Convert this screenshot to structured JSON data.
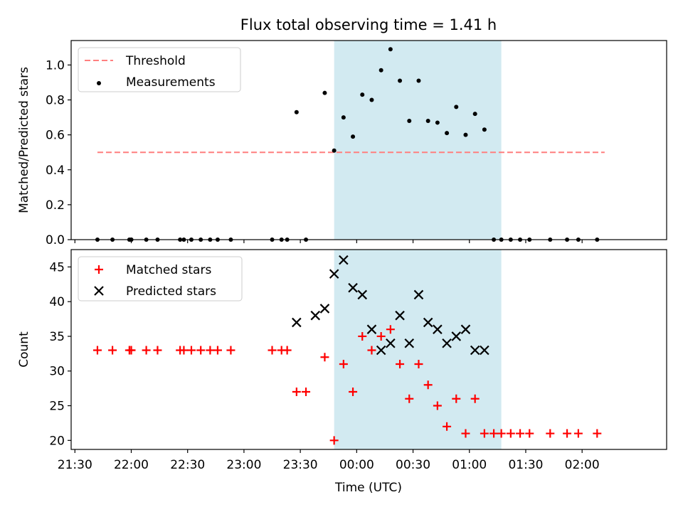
{
  "chart_data": {
    "title": "Flux total observing time = 1.41 h",
    "xlabel": "Time (UTC)",
    "x_unit": "time of day (HH:MM), continuing past midnight",
    "xlim": [
      "21:28",
      "02:45"
    ],
    "x_ticks": [
      "21:30",
      "22:00",
      "22:30",
      "23:00",
      "23:30",
      "00:00",
      "00:30",
      "01:00",
      "01:30",
      "02:00"
    ],
    "highlight_band": {
      "start": "23:48",
      "end": "01:17",
      "color": "#add8e6"
    },
    "panels": [
      {
        "type": "scatter",
        "ylabel": "Matched/Predicted stars",
        "ylim": [
          0,
          1.14
        ],
        "y_ticks": [
          "0.0",
          "0.2",
          "0.4",
          "0.6",
          "0.8",
          "1.0"
        ],
        "y_tick_values": [
          0,
          0.2,
          0.4,
          0.6,
          0.8,
          1.0
        ],
        "legend_position": "top-left",
        "series": [
          {
            "name": "Threshold",
            "type": "line",
            "style": "dashed",
            "color": "#ff7f7f",
            "x": [
              "21:42",
              "02:12"
            ],
            "y": [
              0.5,
              0.5
            ]
          },
          {
            "name": "Measurements",
            "type": "scatter",
            "marker": "dot",
            "color": "#000000",
            "x": [
              "21:42",
              "21:50",
              "21:59",
              "22:00",
              "22:00",
              "22:08",
              "22:14",
              "22:26",
              "22:28",
              "22:32",
              "22:37",
              "22:42",
              "22:46",
              "22:53",
              "23:15",
              "23:20",
              "23:23",
              "23:28",
              "23:33",
              "23:43",
              "23:48",
              "23:53",
              "23:58",
              "24:03",
              "24:08",
              "24:13",
              "24:18",
              "24:23",
              "24:28",
              "24:33",
              "24:38",
              "24:43",
              "24:48",
              "24:53",
              "24:58",
              "25:03",
              "25:08",
              "25:13",
              "25:17",
              "25:22",
              "25:27",
              "25:32",
              "25:43",
              "25:52",
              "25:58",
              "26:08"
            ],
            "y": [
              0,
              0,
              0,
              0,
              0,
              0,
              0,
              0,
              0,
              0,
              0,
              0,
              0,
              0,
              0,
              0,
              0,
              0.73,
              0,
              0.84,
              0.51,
              0.7,
              0.59,
              0.83,
              0.8,
              0.97,
              1.09,
              0.91,
              0.68,
              0.91,
              0.68,
              0.67,
              0.61,
              0.76,
              0.6,
              0.72,
              0.63,
              0,
              0,
              0,
              0,
              0,
              0,
              0,
              0,
              0
            ]
          }
        ]
      },
      {
        "type": "scatter",
        "ylabel": "Count",
        "ylim": [
          18.7,
          47.5
        ],
        "y_ticks": [
          "20",
          "25",
          "30",
          "35",
          "40",
          "45"
        ],
        "y_tick_values": [
          20,
          25,
          30,
          35,
          40,
          45
        ],
        "legend_position": "top-left",
        "series": [
          {
            "name": "Matched stars",
            "type": "scatter",
            "marker": "plus",
            "color": "#ff0000",
            "x": [
              "21:42",
              "21:50",
              "21:59",
              "22:00",
              "22:00",
              "22:08",
              "22:14",
              "22:26",
              "22:28",
              "22:32",
              "22:37",
              "22:42",
              "22:46",
              "22:53",
              "23:15",
              "23:20",
              "23:23",
              "23:28",
              "23:33",
              "23:43",
              "23:48",
              "23:53",
              "23:58",
              "24:03",
              "24:08",
              "24:13",
              "24:18",
              "24:23",
              "24:28",
              "24:33",
              "24:38",
              "24:43",
              "24:48",
              "24:53",
              "24:58",
              "25:03",
              "25:08",
              "25:13",
              "25:17",
              "25:22",
              "25:27",
              "25:32",
              "25:43",
              "25:52",
              "25:58",
              "26:08"
            ],
            "y": [
              33,
              33,
              33,
              33,
              33,
              33,
              33,
              33,
              33,
              33,
              33,
              33,
              33,
              33,
              33,
              33,
              33,
              27,
              27,
              32,
              20,
              31,
              27,
              35,
              33,
              35,
              36,
              31,
              26,
              31,
              28,
              25,
              22,
              26,
              21,
              26,
              21,
              21,
              21,
              21,
              21,
              21,
              21,
              21,
              21,
              21
            ]
          },
          {
            "name": "Predicted stars",
            "type": "scatter",
            "marker": "x",
            "color": "#000000",
            "x": [
              "23:28",
              "23:38",
              "23:43",
              "23:48",
              "23:53",
              "23:58",
              "24:03",
              "24:08",
              "24:13",
              "24:18",
              "24:23",
              "24:28",
              "24:33",
              "24:38",
              "24:43",
              "24:48",
              "24:53",
              "24:58",
              "25:03",
              "25:08"
            ],
            "y": [
              37,
              38,
              39,
              44,
              46,
              42,
              41,
              36,
              33,
              34,
              38,
              34,
              41,
              37,
              36,
              34,
              35,
              36,
              33,
              33
            ]
          }
        ]
      }
    ]
  }
}
